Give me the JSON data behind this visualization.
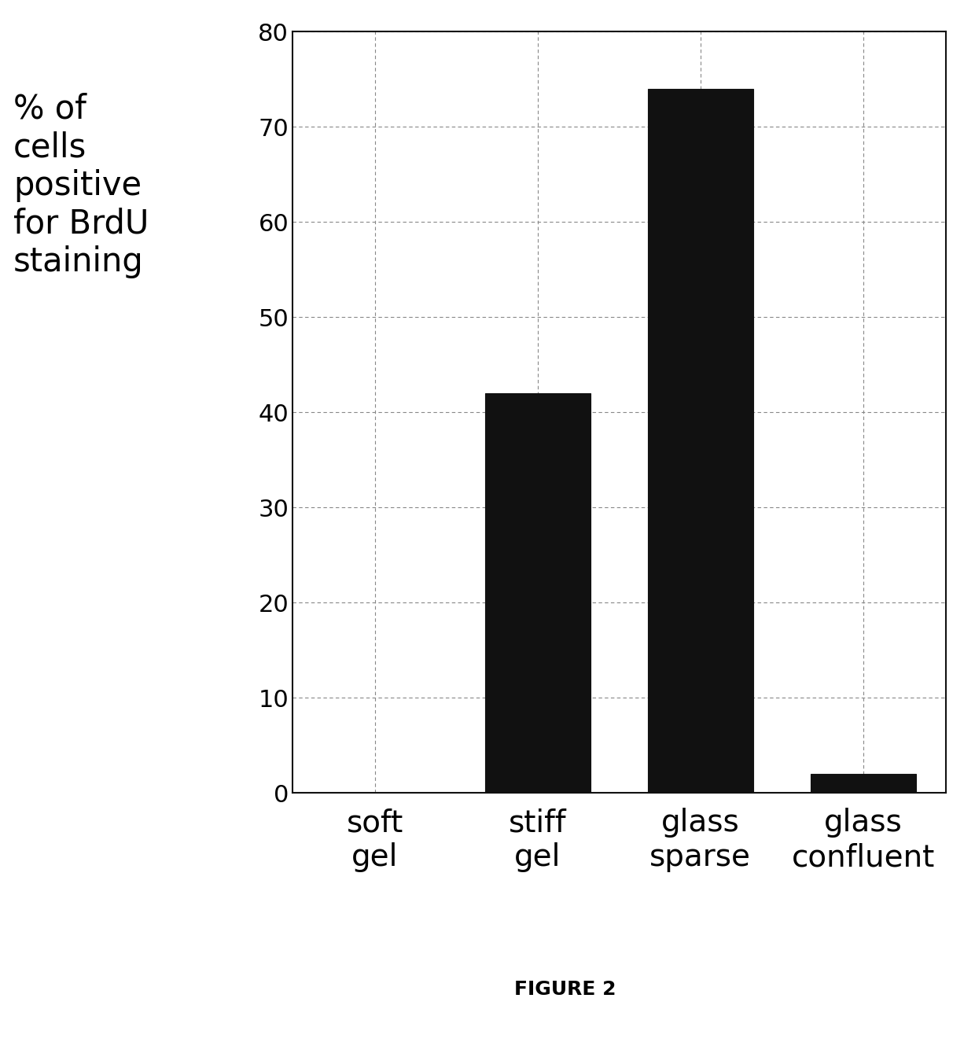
{
  "categories": [
    "soft\ngel",
    "stiff\ngel",
    "glass\nsparse",
    "glass\nconfluent"
  ],
  "values": [
    0,
    42,
    74,
    2
  ],
  "bar_color": "#111111",
  "bar_hatch": "....",
  "ylim": [
    0,
    80
  ],
  "yticks": [
    0,
    10,
    20,
    30,
    40,
    50,
    60,
    70,
    80
  ],
  "ylabel": "% of\ncells\npositive\nfor BrdU\nstaining",
  "ylabel_fontsize": 30,
  "tick_fontsize": 22,
  "xtick_fontsize": 28,
  "caption": "FIGURE 2",
  "caption_fontsize": 18,
  "background_color": "#ffffff",
  "grid_color": "#888888",
  "bar_width": 0.65,
  "bar_edge_color": "#111111"
}
